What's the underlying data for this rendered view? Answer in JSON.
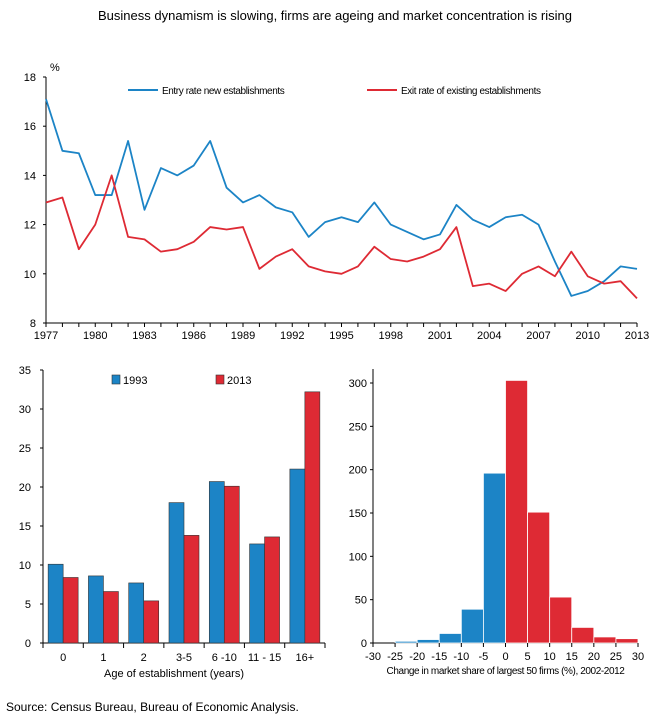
{
  "page": {
    "title": "Business dynamism is slowing, firms are ageing and market concentration is rising",
    "source": "Source: Census Bureau, Bureau of Economic Analysis."
  },
  "colors": {
    "blue": "#1c84c6",
    "red": "#de2a34",
    "axis": "#000000"
  },
  "chart_data": [
    {
      "type": "line",
      "title": "",
      "unit_label": "%",
      "xlabel": "",
      "ylabel": "",
      "xlim": [
        1977,
        2013
      ],
      "ylim": [
        8,
        18
      ],
      "yticks": [
        8,
        10,
        12,
        14,
        16,
        18
      ],
      "xticks": [
        1977,
        1980,
        1983,
        1986,
        1989,
        1992,
        1995,
        1998,
        2001,
        2004,
        2007,
        2010,
        2013
      ],
      "legend_position": "top",
      "x": [
        1977,
        1978,
        1979,
        1980,
        1981,
        1982,
        1983,
        1984,
        1985,
        1986,
        1987,
        1988,
        1989,
        1990,
        1991,
        1992,
        1993,
        1994,
        1995,
        1996,
        1997,
        1998,
        1999,
        2000,
        2001,
        2002,
        2003,
        2004,
        2005,
        2006,
        2007,
        2008,
        2009,
        2010,
        2011,
        2012,
        2013
      ],
      "series": [
        {
          "name": "Entry rate new establishments",
          "color": "#1c84c6",
          "values": [
            17.1,
            15.0,
            14.9,
            13.2,
            13.2,
            15.4,
            12.6,
            14.3,
            14.0,
            14.4,
            15.4,
            13.5,
            12.9,
            13.2,
            12.7,
            12.5,
            11.5,
            12.1,
            12.3,
            12.1,
            12.9,
            12.0,
            11.7,
            11.4,
            11.6,
            12.8,
            12.2,
            11.9,
            12.3,
            12.4,
            12.0,
            10.5,
            9.1,
            9.3,
            9.7,
            10.3,
            10.2
          ]
        },
        {
          "name": "Exit rate of existing establishments",
          "color": "#de2a34",
          "values": [
            12.9,
            13.1,
            11.0,
            12.0,
            14.0,
            11.5,
            11.4,
            10.9,
            11.0,
            11.3,
            11.9,
            11.8,
            11.9,
            10.2,
            10.7,
            11.0,
            10.3,
            10.1,
            10.0,
            10.3,
            11.1,
            10.6,
            10.5,
            10.7,
            11.0,
            11.9,
            9.5,
            9.6,
            9.3,
            10.0,
            10.3,
            9.9,
            10.9,
            9.9,
            9.6,
            9.7,
            9.0
          ]
        }
      ]
    },
    {
      "type": "bar",
      "title": "",
      "xlabel": "Age of establishment (years)",
      "ylabel": "",
      "ylim": [
        0,
        35
      ],
      "yticks": [
        0,
        5,
        10,
        15,
        20,
        25,
        30,
        35
      ],
      "categories": [
        "0",
        "1",
        "2",
        "3-5",
        "6 -10",
        "11 - 15",
        "16+"
      ],
      "legend_position": "top",
      "series": [
        {
          "name": "1993",
          "color": "#1c84c6",
          "values": [
            10.1,
            8.6,
            7.7,
            18.0,
            20.7,
            12.7,
            22.3
          ]
        },
        {
          "name": "2013",
          "color": "#de2a34",
          "values": [
            8.4,
            6.6,
            5.4,
            13.8,
            20.1,
            13.6,
            32.2
          ]
        }
      ]
    },
    {
      "type": "bar",
      "subtype": "histogram",
      "title": "",
      "xlabel": "Change in market share  of largest 50 firms (%), 2002-2012",
      "ylabel": "",
      "xlim": [
        -30,
        30
      ],
      "ylim": [
        0,
        300
      ],
      "yticks": [
        0,
        50,
        100,
        150,
        200,
        250,
        300
      ],
      "xticks": [
        -30,
        -25,
        -20,
        -15,
        -10,
        -5,
        0,
        5,
        10,
        15,
        20,
        25,
        30
      ],
      "bins": [
        {
          "from": -30,
          "to": -25,
          "value": 0,
          "color": "#1c84c6"
        },
        {
          "from": -25,
          "to": -20,
          "value": 2,
          "color": "#1c84c6"
        },
        {
          "from": -20,
          "to": -15,
          "value": 4,
          "color": "#1c84c6"
        },
        {
          "from": -15,
          "to": -10,
          "value": 11,
          "color": "#1c84c6"
        },
        {
          "from": -10,
          "to": -5,
          "value": 39,
          "color": "#1c84c6"
        },
        {
          "from": -5,
          "to": 0,
          "value": 196,
          "color": "#1c84c6"
        },
        {
          "from": 0,
          "to": 5,
          "value": 303,
          "color": "#de2a34"
        },
        {
          "from": 5,
          "to": 10,
          "value": 151,
          "color": "#de2a34"
        },
        {
          "from": 10,
          "to": 15,
          "value": 53,
          "color": "#de2a34"
        },
        {
          "from": 15,
          "to": 20,
          "value": 18,
          "color": "#de2a34"
        },
        {
          "from": 20,
          "to": 25,
          "value": 7,
          "color": "#de2a34"
        },
        {
          "from": 25,
          "to": 30,
          "value": 5,
          "color": "#de2a34"
        }
      ]
    }
  ]
}
